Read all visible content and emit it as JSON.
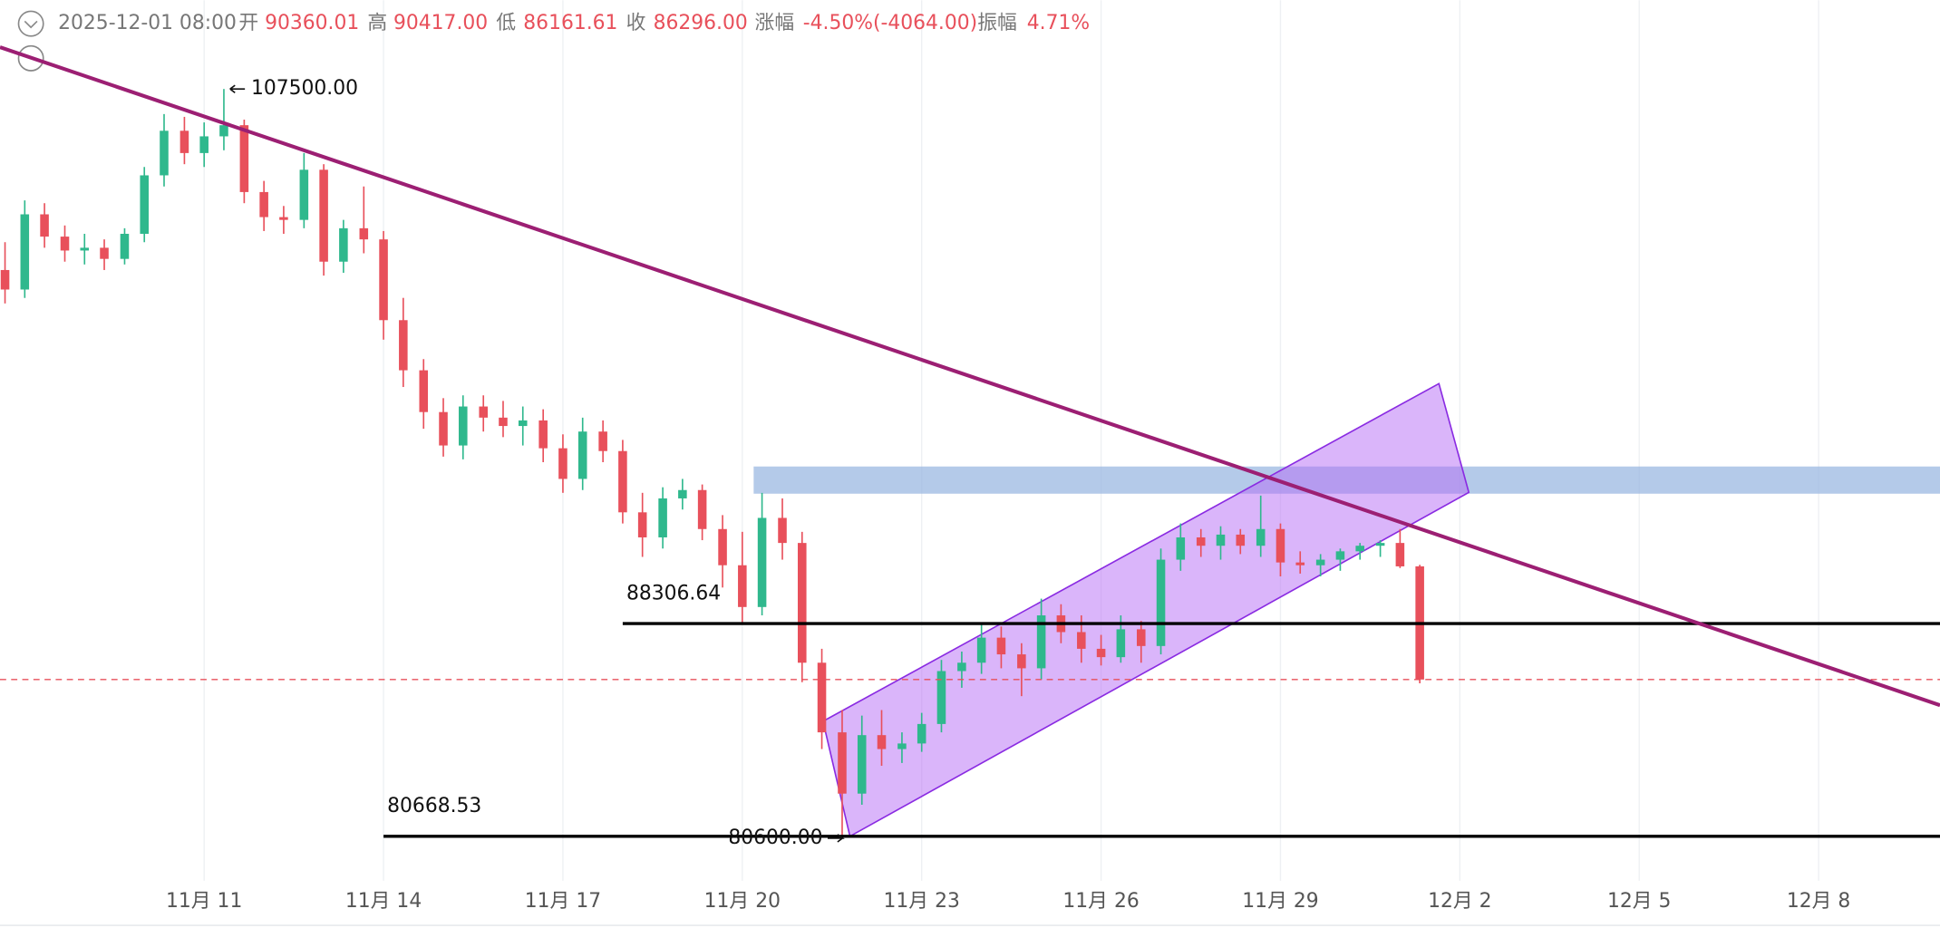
{
  "header": {
    "date": "2025-12-01 08:00",
    "open_label": "开",
    "open": "90360.01",
    "high_label": "高",
    "high": "90417.00",
    "low_label": "低",
    "low": "86161.61",
    "close_label": "收",
    "close": "86296.00",
    "change_label": "涨幅",
    "change": "-4.50%(-4064.00)",
    "amplitude_label": "振幅",
    "amplitude": "4.71%"
  },
  "chart_data": {
    "type": "candlestick",
    "xlim": [
      7.586,
      40.03
    ],
    "ylim": [
      79069,
      110689
    ],
    "xticks": [
      {
        "value": 11,
        "label": "11月 11"
      },
      {
        "value": 14,
        "label": "11月 14"
      },
      {
        "value": 17,
        "label": "11月 17"
      },
      {
        "value": 20,
        "label": "11月 20"
      },
      {
        "value": 23,
        "label": "11月 23"
      },
      {
        "value": 26,
        "label": "11月 26"
      },
      {
        "value": 29,
        "label": "11月 29"
      },
      {
        "value": 32,
        "label": "12月 2"
      },
      {
        "value": 35,
        "label": "12月 5"
      },
      {
        "value": 38,
        "label": "12月 8"
      }
    ],
    "grid": true,
    "up_color": "#2fb88d",
    "down_color": "#e8505b",
    "x": [
      7.67,
      8,
      8.33,
      8.67,
      9,
      9.33,
      9.67,
      10,
      10.33,
      10.67,
      11,
      11.33,
      11.67,
      12,
      12.33,
      12.67,
      13,
      13.33,
      13.67,
      14,
      14.33,
      14.67,
      15,
      15.33,
      15.67,
      16,
      16.33,
      16.67,
      17,
      17.33,
      17.67,
      18,
      18.33,
      18.67,
      19,
      19.33,
      19.67,
      20,
      20.33,
      20.67,
      21,
      21.33,
      21.67,
      22,
      22.33,
      22.67,
      23,
      23.33,
      23.67,
      24,
      24.33,
      24.67,
      25,
      25.33,
      25.67,
      26,
      26.33,
      26.67,
      27,
      27.33,
      27.67,
      28,
      28.33,
      28.67,
      29,
      29.33,
      29.67,
      30,
      30.33,
      30.67,
      31,
      31.33
    ],
    "open": [
      101000,
      100300,
      103000,
      102200,
      101700,
      101800,
      101400,
      102300,
      104400,
      106000,
      105200,
      105800,
      106200,
      103800,
      102900,
      102800,
      104600,
      101300,
      102500,
      102100,
      99200,
      97400,
      95900,
      94700,
      96100,
      95700,
      95400,
      95600,
      94600,
      93500,
      95200,
      94500,
      92300,
      91400,
      92800,
      93100,
      91700,
      90400,
      88900,
      92100,
      91200,
      86900,
      84400,
      82200,
      84300,
      83800,
      84000,
      84700,
      86600,
      86900,
      87800,
      87200,
      86700,
      88600,
      88000,
      87400,
      87100,
      88100,
      87500,
      90600,
      91400,
      91100,
      91500,
      91100,
      91700,
      90500,
      90400,
      90600,
      90900,
      91100,
      91200,
      90360.01
    ],
    "high": [
      102000,
      103500,
      103400,
      102600,
      102300,
      102100,
      102500,
      104700,
      106600,
      106500,
      106300,
      107500,
      106400,
      104200,
      103300,
      105200,
      104800,
      102800,
      104000,
      102400,
      100000,
      97800,
      96400,
      96500,
      96500,
      96300,
      96100,
      96000,
      95100,
      95700,
      95600,
      94900,
      93000,
      93200,
      93500,
      93300,
      92200,
      91600,
      93000,
      92800,
      91600,
      87400,
      85200,
      85000,
      85200,
      84400,
      85100,
      87000,
      87300,
      88300,
      88200,
      87600,
      89200,
      89000,
      88600,
      87900,
      88600,
      88400,
      91000,
      91900,
      91700,
      91800,
      91700,
      92900,
      91900,
      90900,
      90800,
      91000,
      91200,
      91300,
      91700,
      90417
    ],
    "low": [
      99800,
      100000,
      101800,
      101300,
      101200,
      101000,
      101200,
      102000,
      104000,
      104800,
      104700,
      105300,
      103400,
      102400,
      102300,
      102500,
      100800,
      100900,
      101600,
      98500,
      96800,
      95300,
      94300,
      94200,
      95200,
      95000,
      94700,
      94100,
      93000,
      93100,
      94100,
      91900,
      90700,
      91000,
      92400,
      91300,
      89600,
      88300,
      88600,
      90600,
      86200,
      83800,
      80600,
      81800,
      83200,
      83300,
      83700,
      84400,
      86000,
      86500,
      86700,
      85700,
      86300,
      87600,
      86900,
      86800,
      86900,
      86900,
      87200,
      90200,
      90700,
      90600,
      90800,
      90700,
      90000,
      90100,
      90000,
      90200,
      90600,
      90700,
      90300,
      86161.61
    ],
    "close": [
      100300,
      103000,
      102200,
      101700,
      101800,
      101400,
      102300,
      104400,
      106000,
      105200,
      105800,
      106200,
      103800,
      102900,
      102800,
      104600,
      101300,
      102500,
      102100,
      99200,
      97400,
      95900,
      94700,
      96100,
      95700,
      95400,
      95600,
      94600,
      93500,
      95200,
      94500,
      92300,
      91400,
      92800,
      93100,
      91700,
      90400,
      88900,
      92100,
      91200,
      86900,
      84400,
      82200,
      84300,
      83800,
      84000,
      84700,
      86600,
      86900,
      87800,
      87200,
      86700,
      88600,
      88000,
      87400,
      87100,
      88100,
      87500,
      90600,
      91400,
      91100,
      91500,
      91100,
      91700,
      90500,
      90400,
      90600,
      90900,
      91100,
      91200,
      90360,
      86296
    ],
    "annotations": {
      "peak": {
        "x": 11.33,
        "value": 107500,
        "label": "107500.00"
      },
      "bottom": {
        "x": 21.8,
        "value": 80600,
        "label": "80600.00"
      },
      "levels": [
        {
          "from": 18,
          "value": 88306.64,
          "label": "88306.64",
          "color": "#000000"
        },
        {
          "from": 14,
          "value": 80668.53,
          "label": "80668.53",
          "color": "#000000"
        }
      ],
      "trendline": {
        "color": "#9c1f73",
        "x": [
          7.586,
          40.03
        ],
        "values": [
          109001,
          85375
        ]
      },
      "channel": {
        "color": "#b66cf6",
        "x": [
          21.35,
          31.65,
          32.15,
          21.8
        ],
        "values": [
          84798,
          96922,
          93014,
          80668
        ]
      },
      "zone": {
        "color": "#9bb8e2",
        "x": [
          20.19,
          40.03
        ],
        "values": [
          93946,
          92969
        ]
      }
    }
  }
}
